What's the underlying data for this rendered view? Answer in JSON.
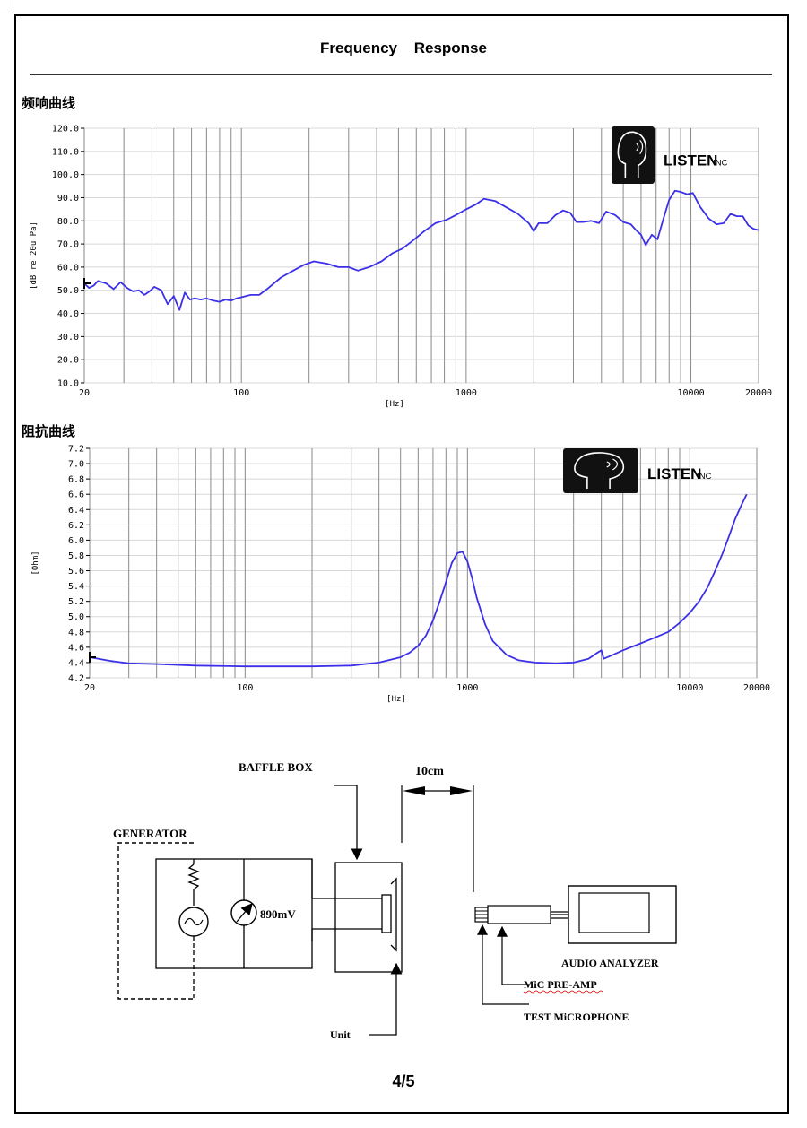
{
  "document": {
    "title": "Frequency Response",
    "page_number": "4/5"
  },
  "frequency_response_section": {
    "label": "频响曲线"
  },
  "impedance_section": {
    "label": "阻抗曲线"
  },
  "logo": {
    "brand": "LISTEN",
    "suffix": "INC"
  },
  "chart_data": [
    {
      "type": "line",
      "title": "",
      "xlabel": "[Hz]",
      "ylabel": "[dB re 20u Pa]",
      "x_scale": "log",
      "xlim": [
        20,
        20000
      ],
      "ylim": [
        10,
        120
      ],
      "x_tick_labels": [
        "20",
        "100",
        "1000",
        "10000",
        "20000"
      ],
      "x_tick_values": [
        20,
        100,
        1000,
        10000,
        20000
      ],
      "y_tick_labels": [
        "120.0",
        "110.0",
        "100.0",
        "90.0",
        "80.0",
        "70.0",
        "60.0",
        "50.0",
        "40.0",
        "30.0",
        "20.0",
        "10.0"
      ],
      "y_tick_values": [
        120,
        110,
        100,
        90,
        80,
        70,
        60,
        50,
        40,
        30,
        20,
        10
      ],
      "grid": true,
      "line_color": "#3b2fe8",
      "series": [
        {
          "x": [
            20,
            21,
            22,
            23,
            25,
            27,
            29,
            31,
            33,
            35,
            37,
            39,
            41,
            44,
            47,
            50,
            53,
            56,
            59,
            62,
            66,
            70,
            75,
            80,
            85,
            90,
            95,
            100,
            110,
            120,
            130,
            150,
            170,
            190,
            210,
            240,
            270,
            300,
            330,
            370,
            420,
            470,
            520,
            580,
            650,
            730,
            820,
            900,
            1000,
            1100,
            1200,
            1350,
            1500,
            1700,
            1900,
            2000,
            2100,
            2300,
            2500,
            2700,
            2900,
            3100,
            3300,
            3600,
            3900,
            4200,
            4600,
            5000,
            5400,
            5700,
            6000,
            6300,
            6700,
            7100,
            7500,
            8000,
            8500,
            9000,
            9600,
            10200,
            11000,
            12000,
            13000,
            14000,
            15000,
            16000,
            17000,
            18000,
            19000,
            20000
          ],
          "y": [
            53,
            51,
            52,
            54,
            53,
            50.5,
            53.5,
            51,
            49.5,
            50,
            48,
            49.5,
            51.5,
            50,
            44,
            47.5,
            41.5,
            49,
            46,
            46.5,
            46,
            46.5,
            45.5,
            45,
            46,
            45.5,
            46.5,
            47,
            48,
            48,
            50.5,
            55.5,
            58.5,
            61,
            62.5,
            61.5,
            60,
            60,
            58.5,
            60,
            62.5,
            66,
            68,
            71.5,
            75.5,
            79,
            80.5,
            82.5,
            85,
            87,
            89.5,
            88.5,
            86,
            83,
            79,
            75.5,
            79,
            79,
            82.5,
            84.5,
            83.5,
            79.5,
            79.5,
            80,
            79,
            84,
            82.5,
            79.5,
            78.5,
            76,
            74,
            69.5,
            74,
            72,
            80,
            89,
            93,
            92.5,
            91.5,
            92,
            86,
            81,
            78.5,
            79,
            83,
            82,
            82,
            78,
            76.5,
            76
          ]
        }
      ]
    },
    {
      "type": "line",
      "title": "",
      "xlabel": "[Hz]",
      "ylabel": "[Ohm]",
      "x_scale": "log",
      "xlim": [
        20,
        20000
      ],
      "ylim": [
        4.2,
        7.2
      ],
      "x_tick_labels": [
        "20",
        "100",
        "1000",
        "10000",
        "20000"
      ],
      "x_tick_values": [
        20,
        100,
        1000,
        10000,
        20000
      ],
      "y_tick_labels": [
        "7.2",
        "7.0",
        "6.8",
        "6.6",
        "6.4",
        "6.2",
        "6.0",
        "5.8",
        "5.6",
        "5.4",
        "5.2",
        "5.0",
        "4.8",
        "4.6",
        "4.4",
        "4.2"
      ],
      "y_tick_values": [
        7.2,
        7.0,
        6.8,
        6.6,
        6.4,
        6.2,
        6.0,
        5.8,
        5.6,
        5.4,
        5.2,
        5.0,
        4.8,
        4.6,
        4.4,
        4.2
      ],
      "grid": true,
      "line_color": "#3b2fe8",
      "series": [
        {
          "x": [
            20,
            25,
            30,
            40,
            60,
            100,
            150,
            200,
            300,
            400,
            500,
            550,
            600,
            650,
            700,
            750,
            800,
            850,
            900,
            950,
            1000,
            1050,
            1100,
            1200,
            1300,
            1500,
            1700,
            2000,
            2500,
            3000,
            3500,
            3800,
            4000,
            4100,
            4500,
            5000,
            6000,
            7000,
            8000,
            9000,
            10000,
            11000,
            12000,
            13000,
            14000,
            15000,
            16000,
            17000,
            18000
          ],
          "y": [
            4.47,
            4.42,
            4.39,
            4.38,
            4.36,
            4.35,
            4.35,
            4.35,
            4.36,
            4.4,
            4.47,
            4.53,
            4.62,
            4.75,
            4.95,
            5.2,
            5.45,
            5.7,
            5.83,
            5.85,
            5.72,
            5.5,
            5.25,
            4.9,
            4.68,
            4.5,
            4.43,
            4.4,
            4.39,
            4.4,
            4.45,
            4.52,
            4.56,
            4.45,
            4.5,
            4.56,
            4.65,
            4.73,
            4.8,
            4.92,
            5.05,
            5.2,
            5.38,
            5.6,
            5.82,
            6.05,
            6.28,
            6.45,
            6.6
          ]
        }
      ]
    }
  ],
  "test_setup": {
    "baffle_box": "BAFFLE BOX",
    "distance": "10cm",
    "generator": "GENERATOR",
    "voltage": "890mV",
    "unit": "Unit",
    "audio_analyzer": "AUDIO ANALYZER",
    "mic_preamp": "MiC PRE-AMP",
    "test_microphone": "TEST MiCROPHONE"
  }
}
